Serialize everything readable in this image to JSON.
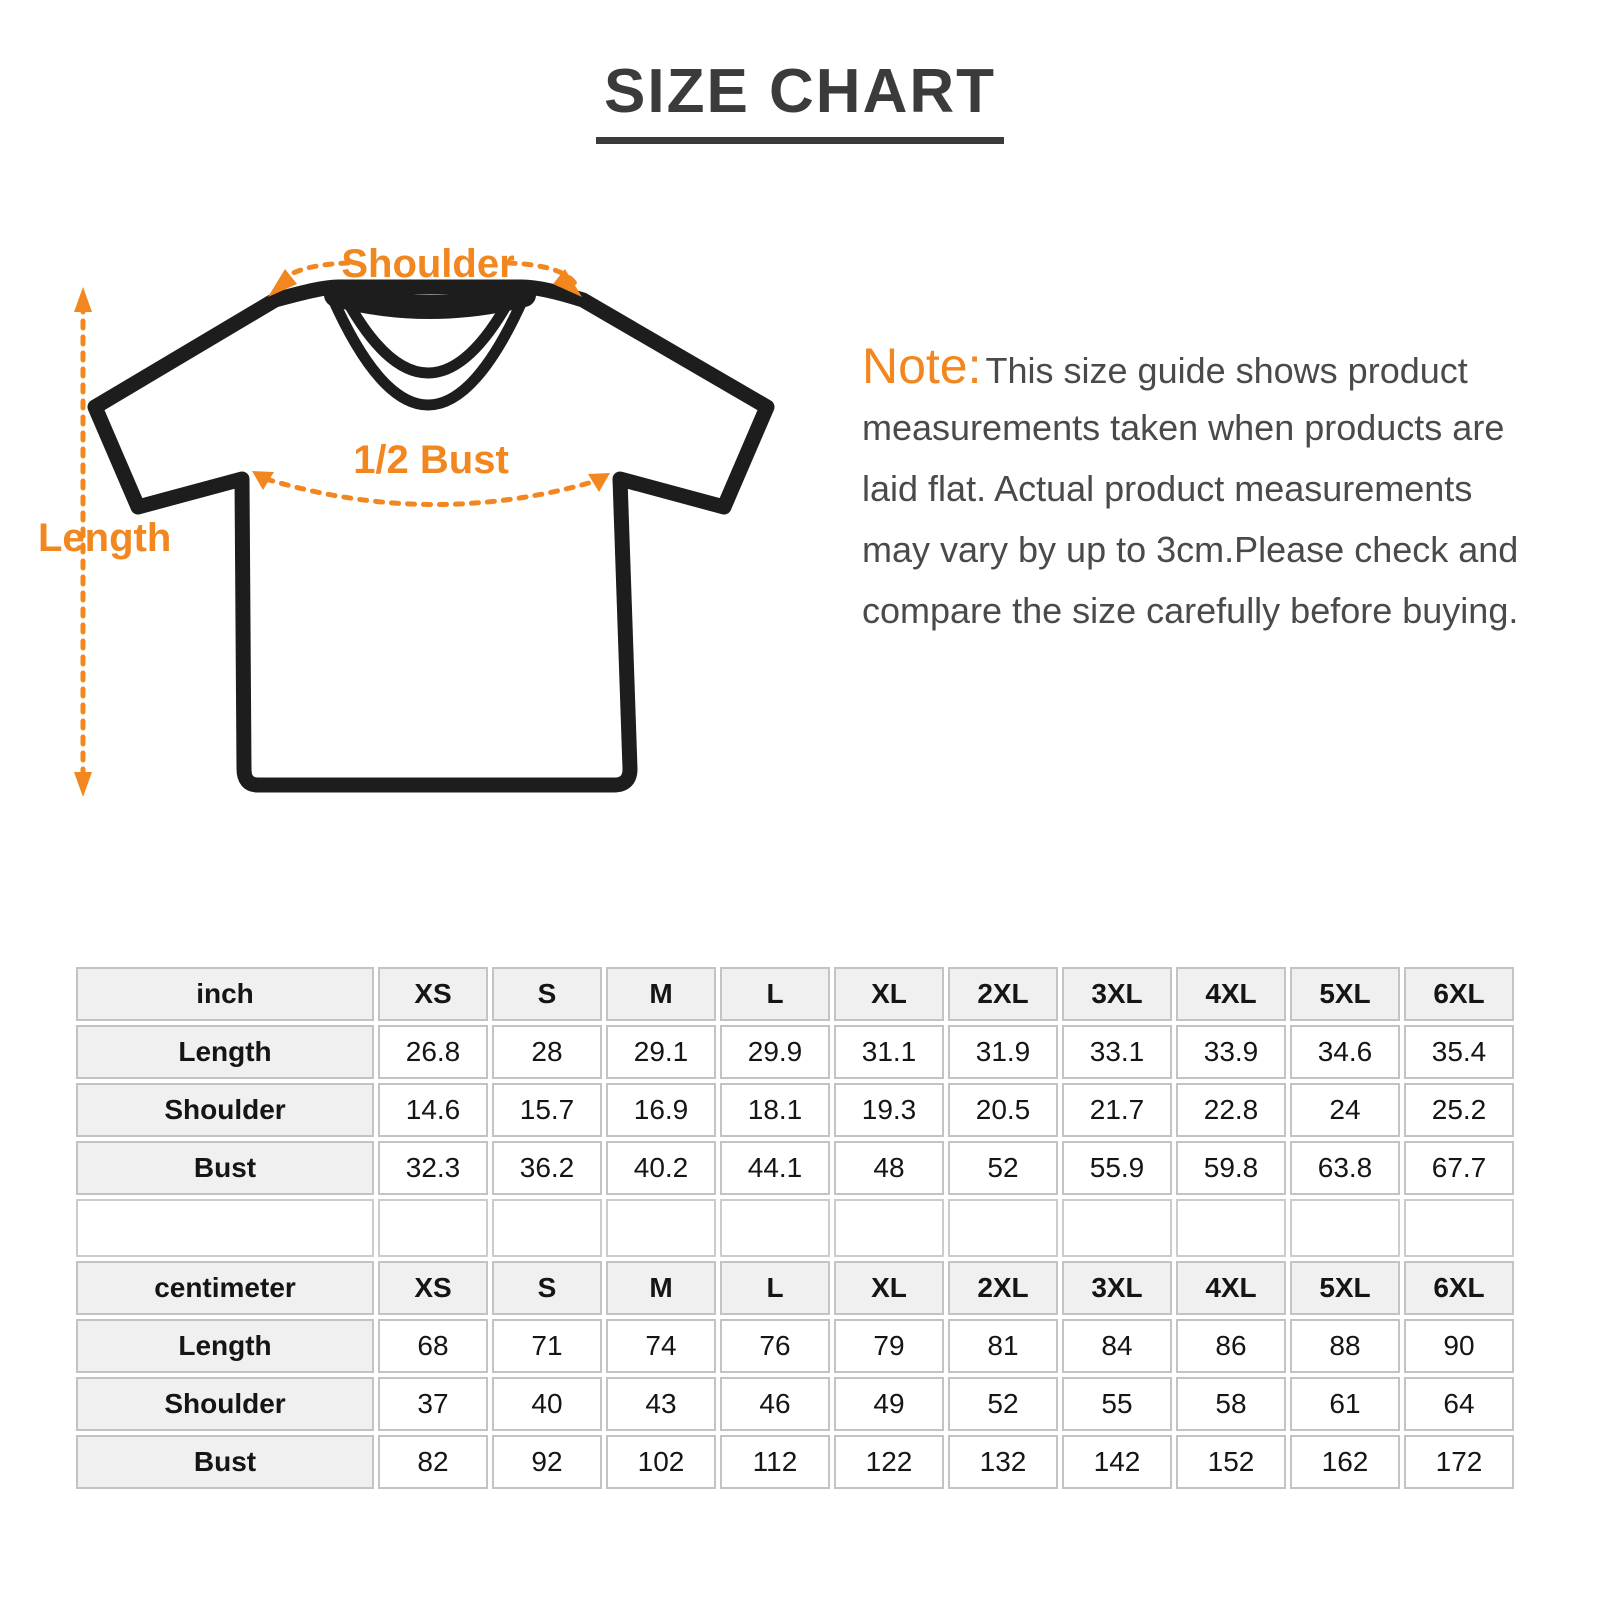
{
  "title": "SIZE CHART",
  "colors": {
    "accent_orange": "#f2861f",
    "title_gray": "#3b3b3b",
    "note_text_gray": "#4a4a4a",
    "table_border_gray": "#c3c3c3",
    "table_header_bg": "#f0f0f0",
    "shirt_outline": "#1d1d1d"
  },
  "diagram": {
    "labels": {
      "shoulder": "Shoulder",
      "bust": "1/2 Bust",
      "length": "Length"
    }
  },
  "note": {
    "label": "Note:",
    "lines": [
      "This size guide shows product",
      "measurements taken when products are",
      "laid flat. Actual product measurements",
      "may vary by up to 3cm.Please check and",
      "compare the size carefully before buying."
    ]
  },
  "size_table": {
    "sizes": [
      "XS",
      "S",
      "M",
      "L",
      "XL",
      "2XL",
      "3XL",
      "4XL",
      "5XL",
      "6XL"
    ],
    "sections": [
      {
        "unit": "inch",
        "rows": [
          {
            "label": "Length",
            "values": [
              "26.8",
              "28",
              "29.1",
              "29.9",
              "31.1",
              "31.9",
              "33.1",
              "33.9",
              "34.6",
              "35.4"
            ]
          },
          {
            "label": "Shoulder",
            "values": [
              "14.6",
              "15.7",
              "16.9",
              "18.1",
              "19.3",
              "20.5",
              "21.7",
              "22.8",
              "24",
              "25.2"
            ]
          },
          {
            "label": "Bust",
            "values": [
              "32.3",
              "36.2",
              "40.2",
              "44.1",
              "48",
              "52",
              "55.9",
              "59.8",
              "63.8",
              "67.7"
            ]
          }
        ]
      },
      {
        "unit": "centimeter",
        "rows": [
          {
            "label": "Length",
            "values": [
              "68",
              "71",
              "74",
              "76",
              "79",
              "81",
              "84",
              "86",
              "88",
              "90"
            ]
          },
          {
            "label": "Shoulder",
            "values": [
              "37",
              "40",
              "43",
              "46",
              "49",
              "52",
              "55",
              "58",
              "61",
              "64"
            ]
          },
          {
            "label": "Bust",
            "values": [
              "82",
              "92",
              "102",
              "112",
              "122",
              "132",
              "142",
              "152",
              "162",
              "172"
            ]
          }
        ]
      }
    ]
  }
}
